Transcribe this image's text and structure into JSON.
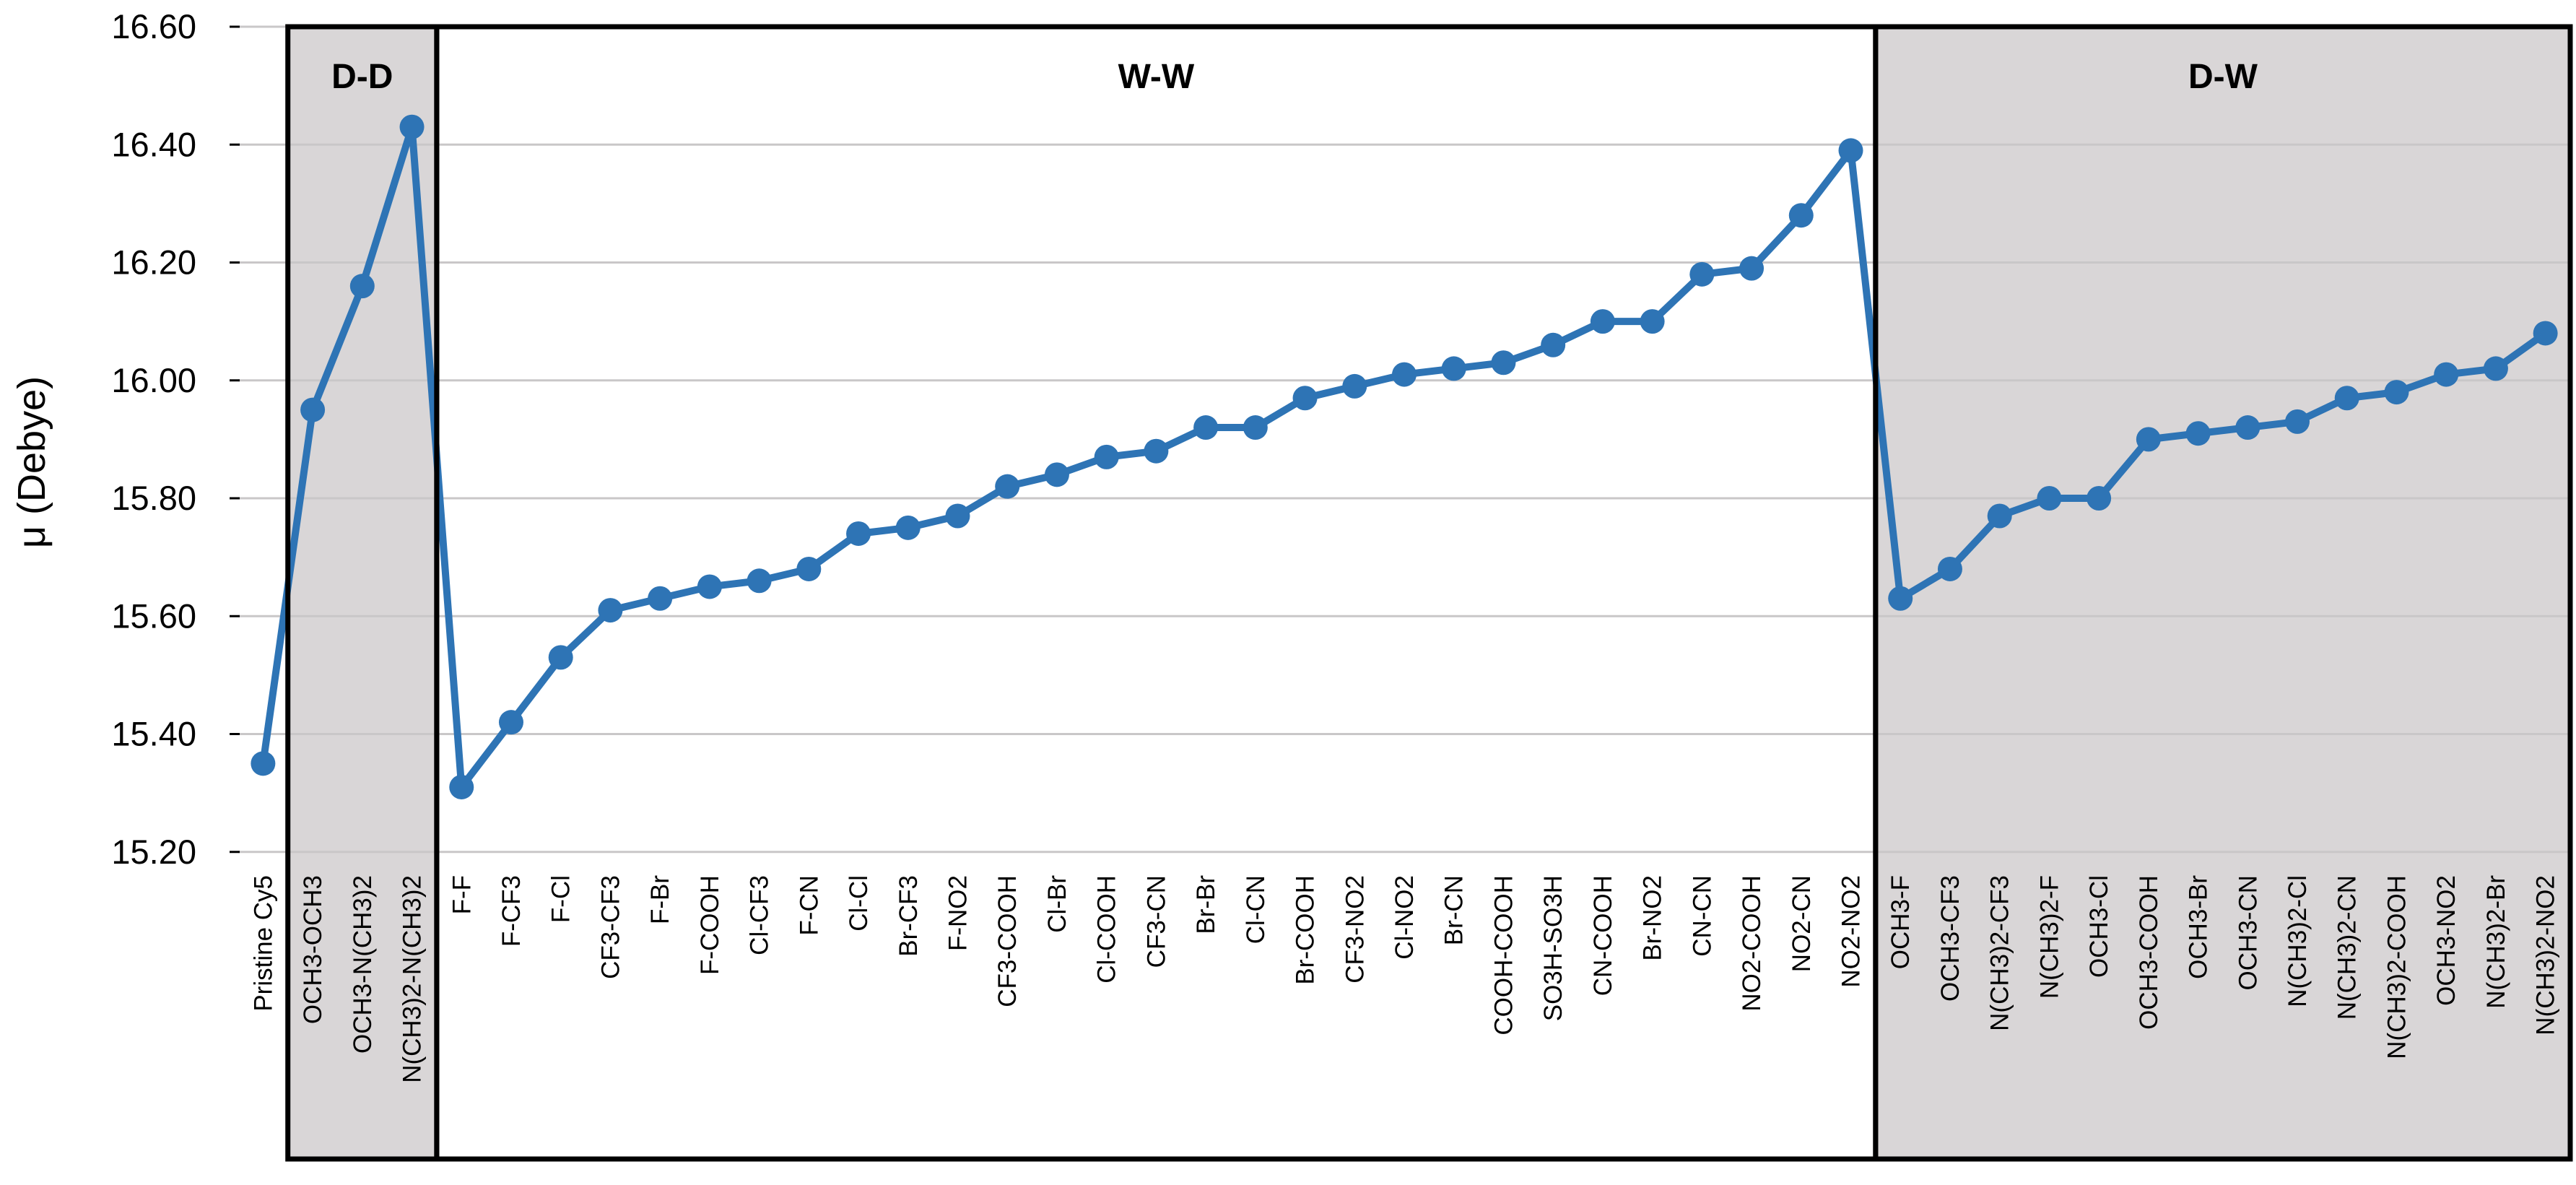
{
  "chart_data": {
    "type": "line",
    "title": "",
    "xlabel": "",
    "ylabel": "μ (Debye)",
    "ylim": [
      14.68,
      16.6
    ],
    "grid": true,
    "legend": false,
    "yticks": [
      {
        "value": 16.6,
        "label": "16.60"
      },
      {
        "value": 16.4,
        "label": "16.40"
      },
      {
        "value": 16.2,
        "label": "16.20"
      },
      {
        "value": 16.0,
        "label": "16.00"
      },
      {
        "value": 15.8,
        "label": "15.80"
      },
      {
        "value": 15.6,
        "label": "15.60"
      },
      {
        "value": 15.4,
        "label": "15.40"
      },
      {
        "value": 15.2,
        "label": "15.20"
      }
    ],
    "categories": [
      "Pristine Cy5",
      "OCH3-OCH3",
      "OCH3-N(CH3)2",
      "N(CH3)2-N(CH3)2",
      "F-F",
      "F-CF3",
      "F-Cl",
      "CF3-CF3",
      "F-Br",
      "F-COOH",
      "Cl-CF3",
      "F-CN",
      "Cl-Cl",
      "Br-CF3",
      "F-NO2",
      "CF3-COOH",
      "Cl-Br",
      "Cl-COOH",
      "CF3-CN",
      "Br-Br",
      "Cl-CN",
      "Br-COOH",
      "CF3-NO2",
      "Cl-NO2",
      "Br-CN",
      "COOH-COOH",
      "SO3H-SO3H",
      "CN-COOH",
      "Br-NO2",
      "CN-CN",
      "NO2-COOH",
      "NO2-CN",
      "NO2-NO2",
      "OCH3-F",
      "OCH3-CF3",
      "N(CH3)2-CF3",
      "N(CH3)2-F",
      "OCH3-Cl",
      "OCH3-COOH",
      "OCH3-Br",
      "OCH3-CN",
      "N(CH3)2-Cl",
      "N(CH3)2-CN",
      "N(CH3)2-COOH",
      "OCH3-NO2",
      "N(CH3)2-Br",
      "N(CH3)2-NO2"
    ],
    "values": [
      15.35,
      15.95,
      16.16,
      16.43,
      15.31,
      15.42,
      15.53,
      15.61,
      15.63,
      15.65,
      15.66,
      15.68,
      15.74,
      15.75,
      15.77,
      15.82,
      15.84,
      15.87,
      15.88,
      15.92,
      15.92,
      15.97,
      15.99,
      16.01,
      16.02,
      16.03,
      16.06,
      16.1,
      16.1,
      16.18,
      16.19,
      16.28,
      16.39,
      15.63,
      15.68,
      15.77,
      15.8,
      15.8,
      15.9,
      15.91,
      15.92,
      15.93,
      15.97,
      15.98,
      16.01,
      16.02,
      16.08
    ],
    "regions": [
      {
        "label": "D-D",
        "start_index": 1,
        "end_index": 3,
        "shaded": true
      },
      {
        "label": "W-W",
        "start_index": 4,
        "end_index": 32,
        "shaded": false
      },
      {
        "label": "D-W",
        "start_index": 33,
        "end_index": 46,
        "shaded": true
      }
    ],
    "colors": {
      "series": "#2E74B5",
      "region_fill": "#D9D6D7",
      "gridline": "#C9C7C8",
      "border": "#000000",
      "text": "#000000"
    }
  }
}
